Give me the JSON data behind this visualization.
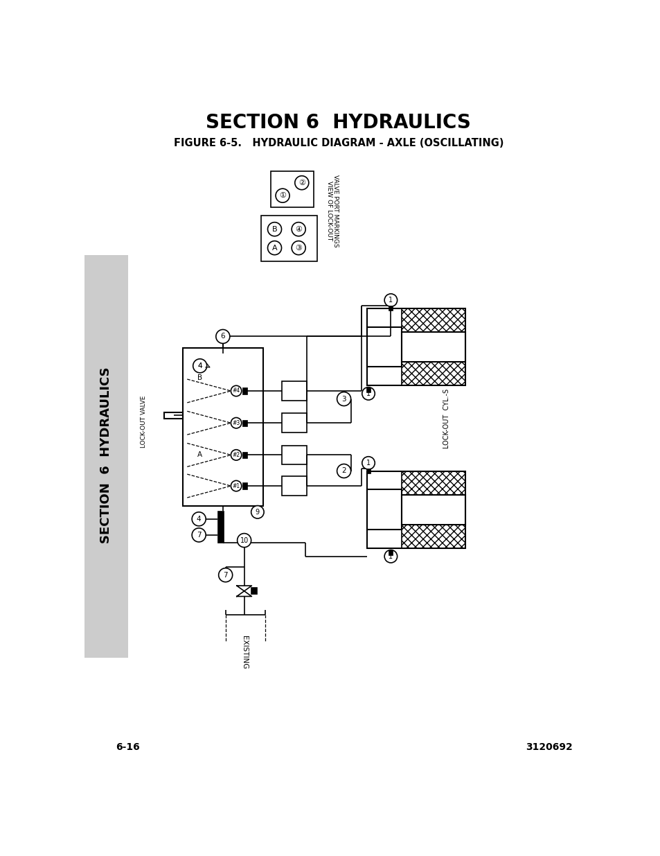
{
  "title": "SECTION 6  HYDRAULICS",
  "subtitle": "FIGURE 6-5.   HYDRAULIC DIAGRAM - AXLE (OSCILLATING)",
  "page_left": "6-16",
  "page_right": "3120692",
  "side_text": "SECTION  6  HYDRAULICS",
  "bg_color": "#ffffff",
  "side_bg_color": "#cccccc",
  "text_color": "#000000",
  "lock_out_valve_label": "LOCK-OUT VALVE",
  "lock_out_cyl_label": "LOCK-OUT  CYL.-S",
  "view_label_1": "VIEW OF LOCK-OUT",
  "view_label_2": "VALVE PORT MARKINGS",
  "existing_label": "EXISTING"
}
